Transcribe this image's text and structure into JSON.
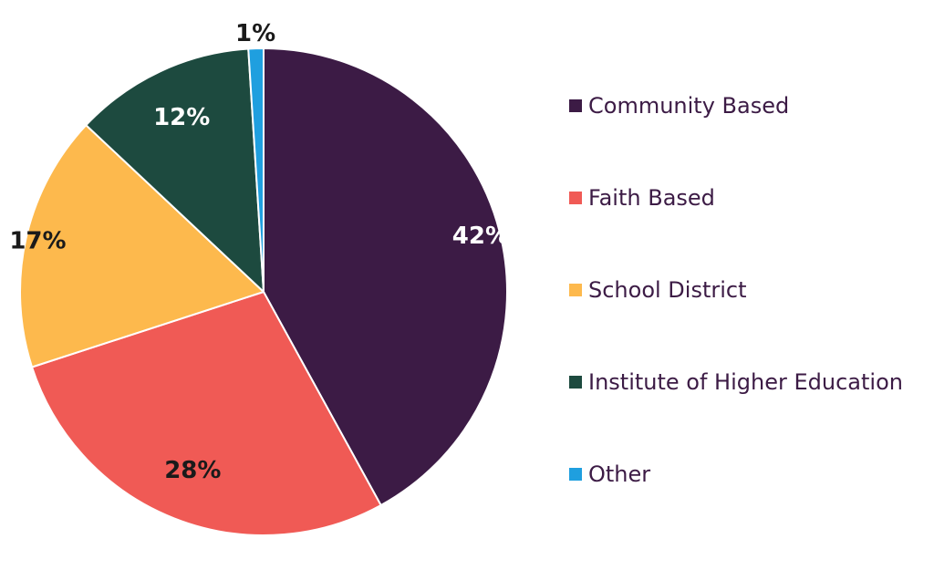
{
  "chart_data": {
    "type": "pie",
    "title": "",
    "categories": [
      "Community Based",
      "Faith Based",
      "School District",
      "Institute of Higher Education",
      "Other"
    ],
    "values": [
      42,
      28,
      17,
      12,
      1
    ],
    "labels": [
      "42%",
      "28%",
      "17%",
      "12%",
      "1%"
    ],
    "colors": [
      "#3c1b45",
      "#f05a55",
      "#fdb94d",
      "#1d4a3f",
      "#1f9fdf"
    ],
    "label_colors": [
      "#ffffff",
      "#1a1a1a",
      "#1a1a1a",
      "#ffffff",
      "#1a1a1a"
    ],
    "legend_position": "right",
    "start_angle": "top, clockwise"
  },
  "legend": {
    "items": [
      {
        "label": "Community Based",
        "color": "#3c1b45"
      },
      {
        "label": "Faith Based",
        "color": "#f05a55"
      },
      {
        "label": "School District",
        "color": "#fdb94d"
      },
      {
        "label": "Institute of Higher Education",
        "color": "#1d4a3f"
      },
      {
        "label": "Other",
        "color": "#1f9fdf"
      }
    ]
  }
}
